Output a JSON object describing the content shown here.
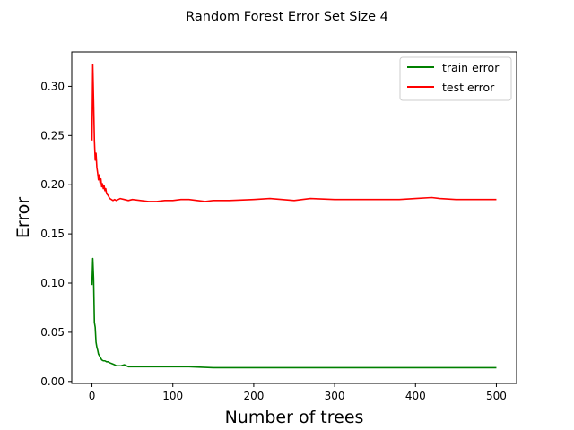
{
  "chart_data": {
    "type": "line",
    "title": "Random Forest Error Set Size 4",
    "xlabel": "Number of trees",
    "ylabel": "Error",
    "xlim": [
      -25,
      525
    ],
    "ylim": [
      -0.002,
      0.335
    ],
    "x_ticks": [
      0,
      100,
      200,
      300,
      400,
      500
    ],
    "y_ticks": [
      0.0,
      0.05,
      0.1,
      0.15,
      0.2,
      0.25,
      0.3
    ],
    "y_tick_labels": [
      "0.00",
      "0.05",
      "0.10",
      "0.15",
      "0.20",
      "0.25",
      "0.30"
    ],
    "grid": false,
    "legend_position": "top-right",
    "series": [
      {
        "name": "train error",
        "color": "#008000",
        "x": [
          0,
          1,
          2,
          3,
          4,
          5,
          6,
          7,
          8,
          10,
          12,
          14,
          16,
          18,
          20,
          22,
          25,
          28,
          30,
          33,
          36,
          40,
          45,
          50,
          60,
          70,
          80,
          90,
          100,
          110,
          120,
          150,
          200,
          250,
          300,
          350,
          400,
          450,
          500
        ],
        "y": [
          0.098,
          0.125,
          0.105,
          0.06,
          0.055,
          0.04,
          0.035,
          0.032,
          0.028,
          0.025,
          0.022,
          0.021,
          0.021,
          0.02,
          0.02,
          0.019,
          0.018,
          0.017,
          0.016,
          0.016,
          0.016,
          0.017,
          0.015,
          0.015,
          0.015,
          0.015,
          0.015,
          0.015,
          0.015,
          0.015,
          0.015,
          0.014,
          0.014,
          0.014,
          0.014,
          0.014,
          0.014,
          0.014,
          0.014
        ]
      },
      {
        "name": "test error",
        "color": "#ff0000",
        "x": [
          0,
          1,
          2,
          3,
          4,
          5,
          6,
          7,
          8,
          9,
          10,
          11,
          12,
          13,
          14,
          15,
          16,
          17,
          18,
          20,
          22,
          24,
          26,
          28,
          30,
          35,
          40,
          45,
          50,
          60,
          70,
          80,
          90,
          100,
          110,
          120,
          130,
          140,
          150,
          170,
          200,
          220,
          250,
          270,
          300,
          330,
          350,
          380,
          400,
          420,
          430,
          450,
          470,
          500
        ],
        "y": [
          0.245,
          0.322,
          0.285,
          0.245,
          0.225,
          0.232,
          0.218,
          0.212,
          0.205,
          0.21,
          0.202,
          0.206,
          0.198,
          0.201,
          0.196,
          0.199,
          0.194,
          0.196,
          0.191,
          0.189,
          0.186,
          0.185,
          0.184,
          0.185,
          0.184,
          0.186,
          0.185,
          0.184,
          0.185,
          0.184,
          0.183,
          0.183,
          0.184,
          0.184,
          0.185,
          0.185,
          0.184,
          0.183,
          0.184,
          0.184,
          0.185,
          0.186,
          0.184,
          0.186,
          0.185,
          0.185,
          0.185,
          0.185,
          0.186,
          0.187,
          0.186,
          0.185,
          0.185,
          0.185
        ]
      }
    ]
  }
}
